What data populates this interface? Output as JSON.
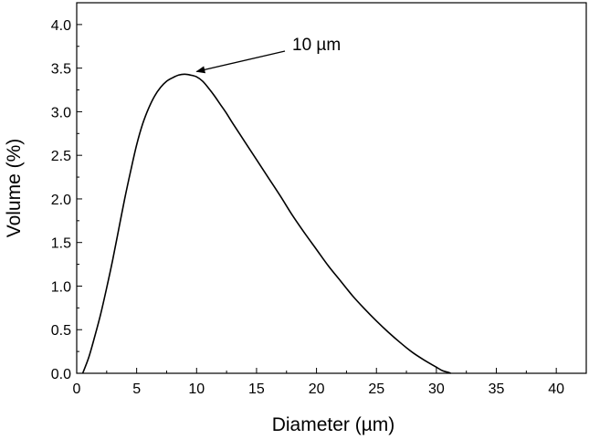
{
  "chart_data": {
    "type": "line",
    "title": "",
    "xlabel": "Diameter (µm)",
    "ylabel": "Volume (%)",
    "xlim": [
      0,
      42.5
    ],
    "ylim": [
      0,
      4.25
    ],
    "xticks": [
      0,
      5,
      10,
      15,
      20,
      25,
      30,
      35,
      40
    ],
    "yticks": [
      0.0,
      0.5,
      1.0,
      1.5,
      2.0,
      2.5,
      3.0,
      3.5,
      4.0
    ],
    "xtick_labels": [
      "0",
      "5",
      "10",
      "15",
      "20",
      "25",
      "30",
      "35",
      "40"
    ],
    "ytick_labels": [
      "0.0",
      "0.5",
      "1.0",
      "1.5",
      "2.0",
      "2.5",
      "3.0",
      "3.5",
      "4.0"
    ],
    "grid": false,
    "legend": "none",
    "series": [
      {
        "color": "#000000",
        "x": [
          0.5,
          1,
          1.5,
          2,
          2.5,
          3,
          3.5,
          4,
          4.5,
          5,
          5.5,
          6,
          6.5,
          7,
          7.5,
          8,
          8.5,
          9,
          9.5,
          10,
          10.5,
          11,
          11.5,
          12,
          12.5,
          13,
          14,
          15,
          16,
          17,
          18,
          19,
          20,
          21,
          22,
          23,
          24,
          25,
          26,
          27,
          28,
          29,
          30,
          30.5,
          31,
          31.2
        ],
        "y": [
          0.0,
          0.18,
          0.42,
          0.68,
          0.98,
          1.3,
          1.65,
          2.0,
          2.32,
          2.62,
          2.86,
          3.04,
          3.18,
          3.28,
          3.35,
          3.39,
          3.42,
          3.43,
          3.42,
          3.4,
          3.35,
          3.27,
          3.18,
          3.08,
          2.98,
          2.87,
          2.66,
          2.45,
          2.24,
          2.03,
          1.81,
          1.61,
          1.42,
          1.23,
          1.06,
          0.89,
          0.74,
          0.6,
          0.47,
          0.35,
          0.24,
          0.15,
          0.07,
          0.03,
          0.01,
          0.0
        ]
      }
    ],
    "annotations": [
      {
        "text": "10 µm",
        "arrow_to": [
          9.7,
          3.44
        ]
      }
    ]
  }
}
